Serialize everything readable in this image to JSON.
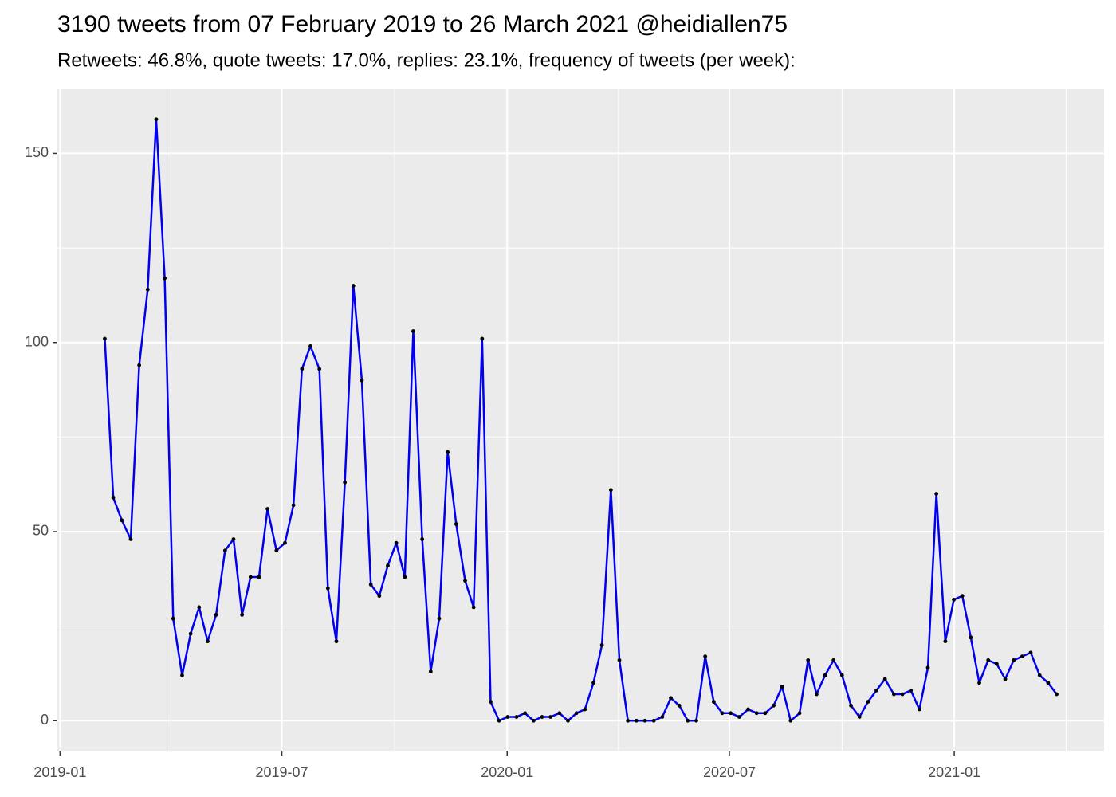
{
  "chart_data": {
    "type": "line",
    "title": "3190 tweets from 07 February 2019 to 26 March 2021 @heidiallen75",
    "subtitle": "Retweets: 46.8%, quote tweets: 17.0%, replies: 23.1%, frequency of tweets (per week):",
    "x": [
      2019.1,
      2019.119,
      2019.138,
      2019.158,
      2019.177,
      2019.196,
      2019.215,
      2019.234,
      2019.253,
      2019.273,
      2019.292,
      2019.311,
      2019.33,
      2019.349,
      2019.369,
      2019.388,
      2019.407,
      2019.426,
      2019.445,
      2019.464,
      2019.484,
      2019.503,
      2019.522,
      2019.541,
      2019.56,
      2019.58,
      2019.599,
      2019.618,
      2019.637,
      2019.656,
      2019.675,
      2019.695,
      2019.714,
      2019.733,
      2019.752,
      2019.771,
      2019.79,
      2019.81,
      2019.829,
      2019.848,
      2019.867,
      2019.886,
      2019.906,
      2019.925,
      2019.944,
      2019.963,
      2019.982,
      2020.001,
      2020.021,
      2020.04,
      2020.059,
      2020.078,
      2020.097,
      2020.117,
      2020.136,
      2020.155,
      2020.174,
      2020.193,
      2020.212,
      2020.232,
      2020.251,
      2020.27,
      2020.289,
      2020.308,
      2020.328,
      2020.347,
      2020.366,
      2020.385,
      2020.404,
      2020.423,
      2020.443,
      2020.462,
      2020.481,
      2020.5,
      2020.519,
      2020.539,
      2020.558,
      2020.577,
      2020.596,
      2020.615,
      2020.634,
      2020.654,
      2020.673,
      2020.692,
      2020.711,
      2020.73,
      2020.749,
      2020.769,
      2020.788,
      2020.807,
      2020.826,
      2020.845,
      2020.865,
      2020.884,
      2020.903,
      2020.922,
      2020.941,
      2020.96,
      2020.98,
      2020.999,
      2021.018,
      2021.037,
      2021.056,
      2021.076,
      2021.095,
      2021.114,
      2021.133,
      2021.152,
      2021.171,
      2021.191,
      2021.21,
      2021.229
    ],
    "values": [
      101,
      59,
      53,
      48,
      94,
      114,
      159,
      117,
      27,
      12,
      23,
      30,
      21,
      28,
      45,
      48,
      28,
      38,
      38,
      56,
      45,
      47,
      57,
      93,
      99,
      93,
      35,
      21,
      63,
      115,
      90,
      36,
      33,
      41,
      47,
      38,
      103,
      48,
      13,
      27,
      71,
      52,
      37,
      30,
      101,
      5,
      0,
      1,
      1,
      2,
      0,
      1,
      1,
      2,
      0,
      2,
      3,
      10,
      20,
      61,
      16,
      0,
      0,
      0,
      0,
      1,
      6,
      4,
      0,
      0,
      17,
      5,
      2,
      2,
      1,
      3,
      2,
      2,
      4,
      9,
      0,
      2,
      16,
      7,
      12,
      16,
      12,
      4,
      1,
      5,
      8,
      11,
      7,
      7,
      8,
      3,
      14,
      60,
      21,
      32,
      33,
      22,
      10,
      16,
      15,
      11,
      16,
      17,
      18,
      12,
      10,
      7
    ],
    "color": "#0000ee",
    "point_color": "#000000",
    "xlim": [
      2018.994,
      2021.335
    ],
    "xticks": [
      {
        "value": 2019.0,
        "label": "2019-01"
      },
      {
        "value": 2019.496,
        "label": "2019-07"
      },
      {
        "value": 2020.0,
        "label": "2020-01"
      },
      {
        "value": 2020.497,
        "label": "2020-07"
      },
      {
        "value": 2021.0,
        "label": "2021-01"
      }
    ],
    "xminorticks": [
      2019.248,
      2019.748,
      2020.249,
      2020.749,
      2021.25
    ],
    "ylim": [
      -7.95,
      166.95
    ],
    "yticks": [
      0,
      50,
      100,
      150
    ],
    "yminorticks": [
      25,
      75,
      125
    ],
    "grid": true
  }
}
